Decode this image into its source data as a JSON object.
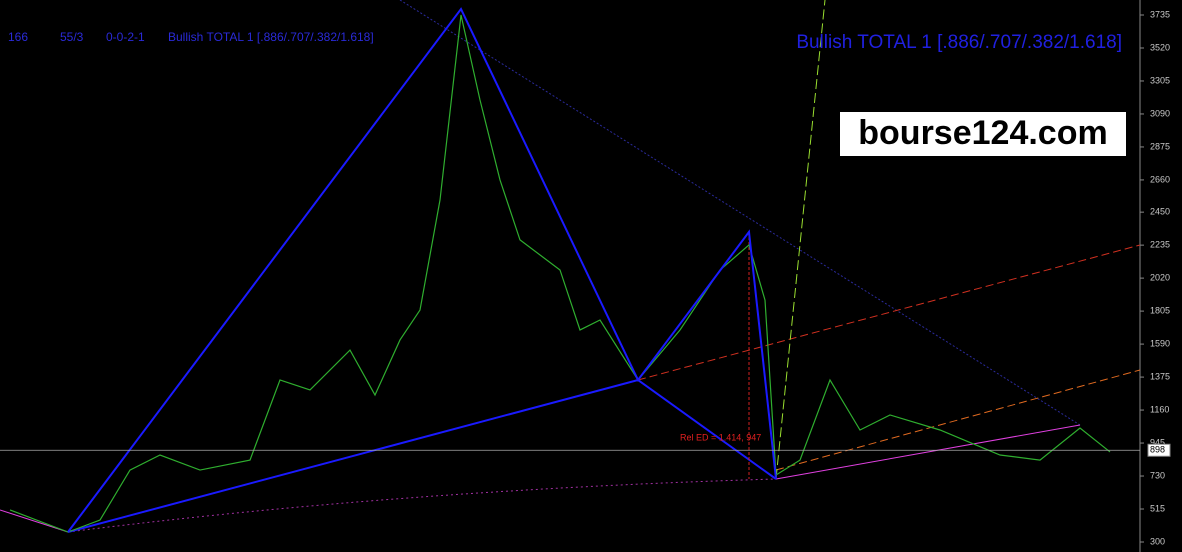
{
  "chart_data": {
    "type": "line",
    "title": "Bullish TOTAL 1 [.886/.707/.382/1.618]",
    "info": [
      "166",
      "55/3",
      "0-0-2-1",
      "Bullish TOTAL 1 [.886/.707/.382/1.618]"
    ],
    "watermark": "bourse124.com",
    "annotation": "Rel ED = 1.414, 947",
    "current_price": 898,
    "xlim": [
      0,
      1140
    ],
    "ylim": [
      300,
      3735
    ],
    "yticks": [
      300,
      515,
      730,
      945,
      1160,
      1375,
      1590,
      1805,
      2020,
      2235,
      2450,
      2660,
      2875,
      3090,
      3305,
      3520,
      3735
    ],
    "series": [
      {
        "color": "#2fae2f",
        "x": [
          10,
          68,
          100,
          130,
          160,
          200,
          250,
          280,
          310,
          350,
          375,
          400,
          420,
          440,
          461,
          480,
          500,
          520,
          560,
          580,
          600,
          638,
          680,
          720,
          749,
          765,
          776,
          800,
          830,
          860,
          890,
          940,
          1000,
          1040,
          1080,
          1110
        ],
        "values": [
          509,
          365,
          443,
          769,
          867,
          769,
          834,
          1356,
          1291,
          1551,
          1258,
          1617,
          1812,
          2529,
          3735,
          3181,
          2660,
          2269,
          2073,
          1682,
          1747,
          1356,
          1682,
          2073,
          2236,
          1877,
          737,
          834,
          1356,
          1030,
          1128,
          1030,
          867,
          834,
          1043,
          887
        ]
      },
      {
        "color": "#1a1aff",
        "x": [
          68,
          461,
          638,
          749,
          776
        ],
        "values": [
          365,
          3774,
          1356,
          2321,
          711
        ]
      }
    ]
  }
}
